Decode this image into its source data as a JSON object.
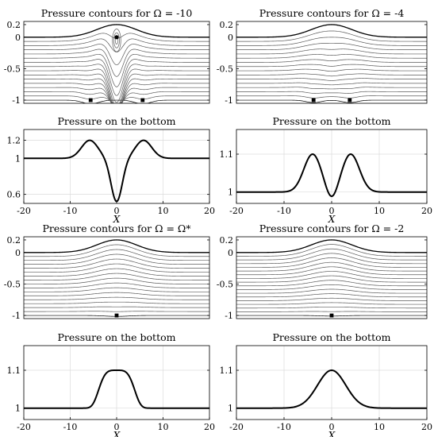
{
  "figure": {
    "panels": [
      {
        "id": "contour-omega-10",
        "type": "contour",
        "title": "Pressure contours for Ω = -10",
        "xlim": [
          -20,
          20
        ],
        "ylim": [
          -1.05,
          0.25
        ],
        "yticks": [
          0.2,
          0,
          -0.5,
          -1
        ],
        "ytick_labels": [
          "0.2",
          "0",
          "-0.5",
          "-1"
        ],
        "xticks": [],
        "surface": {
          "amplitude": 0.2,
          "width": 6
        },
        "levels": 15,
        "bottom_dips": [
          {
            "x": -5.6,
            "depth": 0.06,
            "width": 2.4
          },
          {
            "x": 5.6,
            "depth": 0.06,
            "width": 2.4
          }
        ],
        "central_dip": {
          "x": 0,
          "depth": 0.68,
          "width": 2.0
        },
        "eddy": {
          "x": 0,
          "y": -0.05,
          "rx": 0.9,
          "ry": 0.18
        },
        "markers": [
          {
            "x": 0,
            "y": 0.0,
            "shape": "circle"
          },
          {
            "x": -5.6,
            "y": -1,
            "shape": "square"
          },
          {
            "x": 5.6,
            "y": -1,
            "shape": "square"
          }
        ]
      },
      {
        "id": "contour-omega-4",
        "type": "contour",
        "title": "Pressure contours for Ω = -4",
        "xlim": [
          -20,
          20
        ],
        "ylim": [
          -1.05,
          0.25
        ],
        "yticks": [
          0.2,
          0,
          -0.5,
          -1
        ],
        "ytick_labels": [
          "0.2",
          "0",
          "-0.5",
          "-1"
        ],
        "xticks": [],
        "surface": {
          "amplitude": 0.2,
          "width": 6
        },
        "levels": 15,
        "bottom_dips": [
          {
            "x": -3.8,
            "depth": 0.04,
            "width": 2.2
          },
          {
            "x": 3.8,
            "depth": 0.04,
            "width": 2.2
          }
        ],
        "central_dip": {
          "x": 0,
          "depth": 0.1,
          "width": 3.0
        },
        "markers": [
          {
            "x": -3.8,
            "y": -1,
            "shape": "square"
          },
          {
            "x": 3.8,
            "y": -1,
            "shape": "square"
          }
        ]
      },
      {
        "id": "pressure-omega-10",
        "type": "line",
        "title": "Pressure on the bottom",
        "xlim": [
          -20,
          20
        ],
        "ylim": [
          0.5,
          1.32
        ],
        "yticks": [
          1.2,
          1,
          0.6
        ],
        "ytick_labels": [
          "1.2",
          "1",
          "0.6"
        ],
        "xticks": [
          -20,
          -10,
          0,
          10,
          20
        ],
        "xtick_labels": [
          "-20",
          "-10",
          "0",
          "10",
          "20"
        ],
        "xlabel": "X",
        "grid": true,
        "curve": {
          "base": 1,
          "bumps": [
            {
              "x": -5.8,
              "amp": 0.2,
              "width": 2.5
            },
            {
              "x": 5.8,
              "amp": 0.2,
              "width": 2.5
            }
          ],
          "dips": [
            {
              "x": 0,
              "amp": 0.48,
              "width": 1.7
            }
          ]
        }
      },
      {
        "id": "pressure-omega-4",
        "type": "line",
        "title": "Pressure on the bottom",
        "xlim": [
          -20,
          20
        ],
        "ylim": [
          0.97,
          1.165
        ],
        "yticks": [
          1.1,
          1
        ],
        "ytick_labels": [
          "1.1",
          "1"
        ],
        "xticks": [
          -20,
          -10,
          0,
          10,
          20
        ],
        "xtick_labels": [
          "-20",
          "-10",
          "0",
          "10",
          "20"
        ],
        "xlabel": "X",
        "grid": true,
        "curve": {
          "base": 1,
          "bumps": [
            {
              "x": -4.0,
              "amp": 0.1,
              "width": 2.6
            },
            {
              "x": 4.0,
              "amp": 0.1,
              "width": 2.6
            }
          ],
          "dips": [
            {
              "x": 0,
              "amp": 0.03,
              "width": 1.6
            }
          ]
        }
      },
      {
        "id": "contour-omega-star",
        "type": "contour",
        "title": "Pressure contours for Ω = Ω*",
        "xlim": [
          -20,
          20
        ],
        "ylim": [
          -1.05,
          0.25
        ],
        "yticks": [
          0.2,
          0,
          -0.5,
          -1
        ],
        "ytick_labels": [
          "0.2",
          "0",
          "-0.5",
          "-1"
        ],
        "xticks": [],
        "surface": {
          "amplitude": 0.2,
          "width": 6
        },
        "levels": 16,
        "bottom_dips": [
          {
            "x": 0,
            "depth": 0.015,
            "width": 3.5
          }
        ],
        "central_dip": {
          "x": 0,
          "depth": 0,
          "width": 3.0
        },
        "markers": [
          {
            "x": 0,
            "y": -1,
            "shape": "square"
          }
        ]
      },
      {
        "id": "contour-omega-2",
        "type": "contour",
        "title": "Pressure contours for Ω = -2",
        "xlim": [
          -20,
          20
        ],
        "ylim": [
          -1.05,
          0.25
        ],
        "yticks": [
          0.2,
          0,
          -0.5,
          -1
        ],
        "ytick_labels": [
          "0.2",
          "0",
          "-0.5",
          "-1"
        ],
        "xticks": [],
        "surface": {
          "amplitude": 0.2,
          "width": 6
        },
        "levels": 17,
        "bottom_dips": [
          {
            "x": 0,
            "depth": 0.01,
            "width": 3.5
          }
        ],
        "central_dip": {
          "x": 0,
          "depth": 0,
          "width": 3.0
        },
        "markers": [
          {
            "x": 0,
            "y": -1,
            "shape": "square"
          }
        ]
      },
      {
        "id": "pressure-omega-star",
        "type": "line",
        "title": "Pressure on the bottom",
        "xlim": [
          -20,
          20
        ],
        "ylim": [
          0.97,
          1.165
        ],
        "yticks": [
          1.1,
          1
        ],
        "ytick_labels": [
          "1.1",
          "1"
        ],
        "xticks": [
          -20,
          -10,
          0,
          10,
          20
        ],
        "xtick_labels": [
          "-20",
          "-10",
          "0",
          "10",
          "20"
        ],
        "xlabel": "X",
        "grid": true,
        "curve": {
          "base": 1,
          "flat_top": true,
          "amp": 0.1,
          "width": 4.2
        }
      },
      {
        "id": "pressure-omega-2",
        "type": "line",
        "title": "Pressure on the bottom",
        "xlim": [
          -20,
          20
        ],
        "ylim": [
          0.97,
          1.165
        ],
        "yticks": [
          1.1,
          1
        ],
        "ytick_labels": [
          "1.1",
          "1"
        ],
        "xticks": [
          -20,
          -10,
          0,
          10,
          20
        ],
        "xtick_labels": [
          "-20",
          "-10",
          "0",
          "10",
          "20"
        ],
        "xlabel": "X",
        "grid": true,
        "curve": {
          "base": 1,
          "bumps": [
            {
              "x": 0,
              "amp": 0.1,
              "width": 4.2
            }
          ],
          "dips": []
        }
      }
    ]
  }
}
